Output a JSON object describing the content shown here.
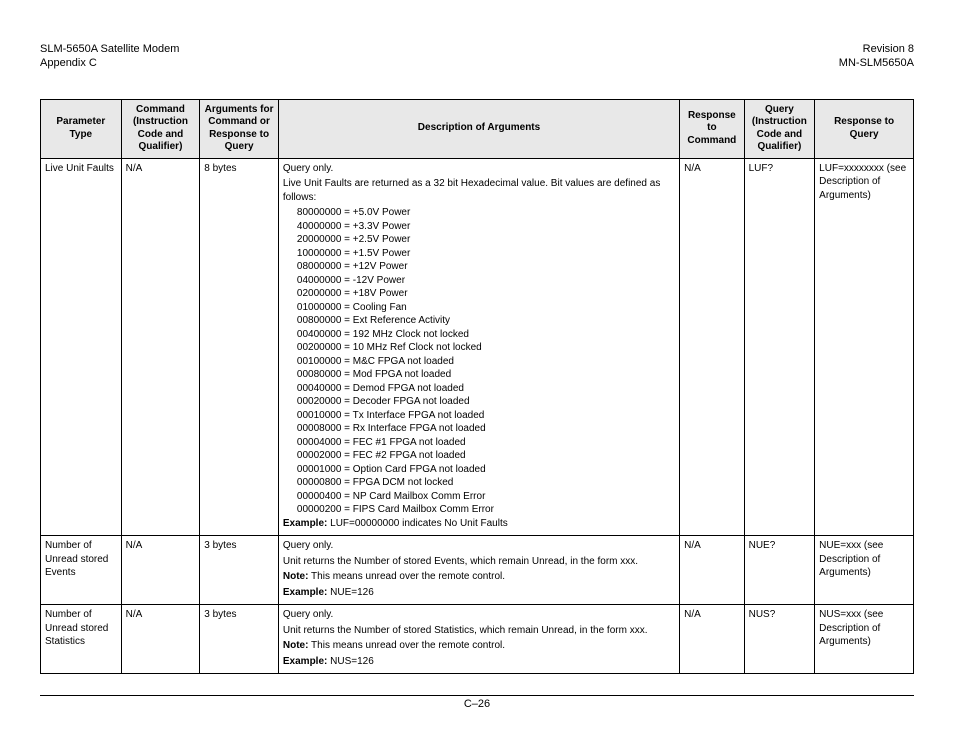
{
  "header": {
    "left1": "SLM-5650A Satellite Modem",
    "left2": "Appendix C",
    "right1": "Revision 8",
    "right2": "MN-SLM5650A"
  },
  "columns": {
    "c0": "Parameter Type",
    "c1": "Command (Instruction Code and Qualifier)",
    "c2": "Arguments for Command or Response to Query",
    "c3": "Description of Arguments",
    "c4": "Response to Command",
    "c5": "Query (Instruction Code and Qualifier)",
    "c6": "Response to Query"
  },
  "rows": {
    "r0": {
      "param": "Live Unit Faults",
      "cmd": "N/A",
      "args": "8 bytes",
      "respCmd": "N/A",
      "query": "LUF?",
      "respQuery": "LUF=xxxxxxxx (see Description of  Arguments)",
      "desc": {
        "l0": "Query only.",
        "l1": "Live Unit Faults are returned as a 32 bit Hexadecimal value.  Bit values are defined as follows:",
        "b0": "80000000 = +5.0V Power",
        "b1": "40000000 = +3.3V Power",
        "b2": "20000000 = +2.5V Power",
        "b3": "10000000 = +1.5V Power",
        "b4": "08000000 = +12V Power",
        "b5": "04000000 = -12V Power",
        "b6": "02000000 = +18V Power",
        "b7": "01000000 = Cooling Fan",
        "b8": "00800000 = Ext Reference Activity",
        "b9": "00400000 = 192 MHz Clock not locked",
        "b10": "00200000 = 10 MHz Ref Clock not locked",
        "b11": "00100000 = M&C FPGA not loaded",
        "b12": "00080000 = Mod FPGA not loaded",
        "b13": "00040000 = Demod FPGA not loaded",
        "b14": "00020000 = Decoder FPGA not loaded",
        "b15": "00010000 = Tx Interface FPGA not loaded",
        "b16": "00008000 = Rx Interface FPGA not loaded",
        "b17": "00004000 = FEC #1 FPGA not loaded",
        "b18": "00002000 = FEC #2 FPGA not loaded",
        "b19": "00001000 = Option Card FPGA not loaded",
        "b20": "00000800 = FPGA DCM not locked",
        "b21": "00000400 = NP Card Mailbox Comm Error",
        "b22": "00000200 = FIPS Card Mailbox Comm Error",
        "exLabel": "Example:",
        "exText": " LUF=00000000 indicates No Unit Faults"
      }
    },
    "r1": {
      "param": "Number of Unread stored Events",
      "cmd": "N/A",
      "args": "3 bytes",
      "respCmd": "N/A",
      "query": "NUE?",
      "respQuery": "NUE=xxx (see Description of  Arguments)",
      "desc": {
        "l0": "Query only.",
        "l1": "Unit returns the Number of stored Events, which remain Unread, in the form xxx.",
        "noteLabel": "Note:",
        "noteText": " This means unread over the remote control.",
        "exLabel": "Example:",
        "exText": " NUE=126"
      }
    },
    "r2": {
      "param": "Number of Unread stored Statistics",
      "cmd": "N/A",
      "args": "3 bytes",
      "respCmd": "N/A",
      "query": "NUS?",
      "respQuery": "NUS=xxx (see Description of  Arguments)",
      "desc": {
        "l0": "Query only.",
        "l1": "Unit returns the Number of stored Statistics, which remain Unread, in the form xxx.",
        "noteLabel": "Note:",
        "noteText": " This means unread over the remote control.",
        "exLabel": "Example:",
        "exText": " NUS=126"
      }
    }
  },
  "footer": {
    "page": "C–26"
  }
}
